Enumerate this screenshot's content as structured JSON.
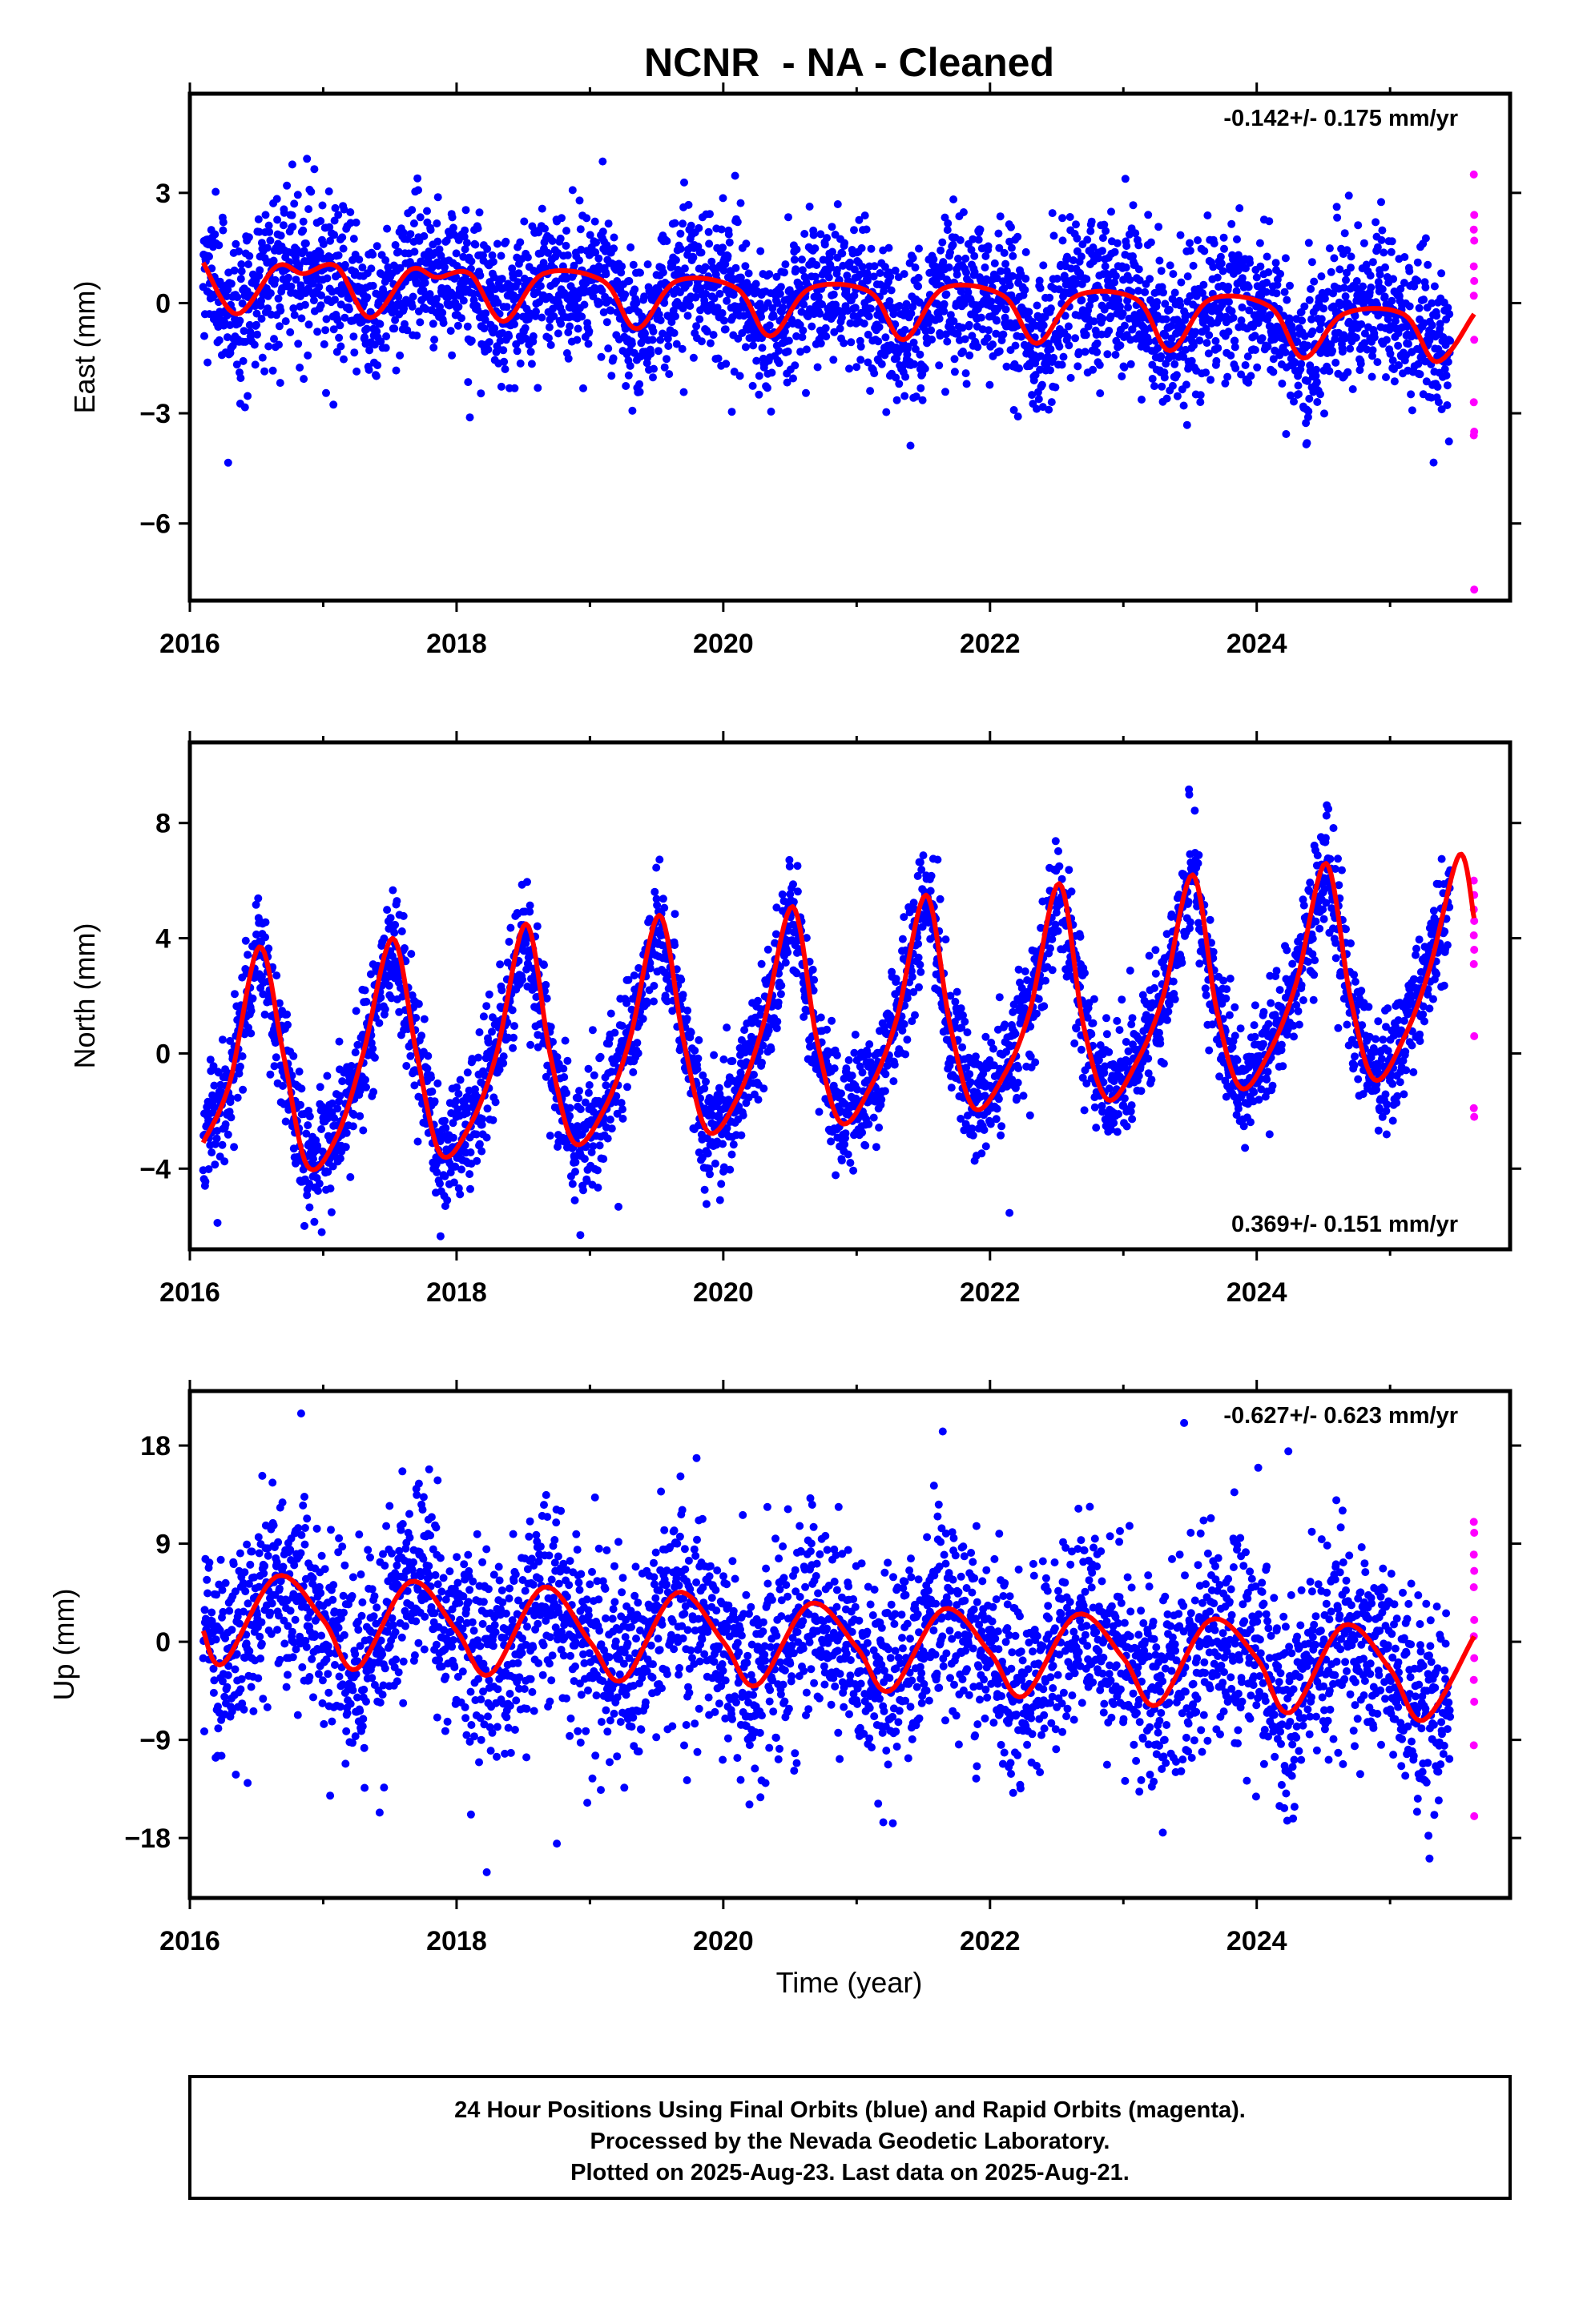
{
  "title": "NCNR  - NA - Cleaned",
  "x_axis_label": "Time (year)",
  "footnote": [
    "24 Hour Positions Using Final Orbits (blue) and Rapid Orbits (magenta).",
    "Processed by the Nevada Geodetic Laboratory.",
    "Plotted on 2025-Aug-23. Last data on 2025-Aug-21."
  ],
  "colors": {
    "final": "#0000ff",
    "rapid": "#ff00ff",
    "model": "#ff0000",
    "frame": "#000000"
  },
  "chart_data": [
    {
      "type": "scatter",
      "component": "east",
      "ylabel": "East (mm)",
      "rate_text": "-0.142+/- 0.175 mm/yr",
      "rate_position": "top-right",
      "xlim": [
        2016.0,
        2025.9
      ],
      "ylim": [
        -8.1,
        5.7
      ],
      "x_ticks": [
        2016,
        2018,
        2020,
        2022,
        2024
      ],
      "y_ticks": [
        -6,
        -3,
        0,
        3
      ],
      "y_tick_labels": [
        "−6",
        "−3",
        "0",
        "3"
      ],
      "grid": false,
      "rate_mm_per_yr": -0.142,
      "annual_amplitude_mm": 0.35,
      "annual_peak_phase": 0.62,
      "semiannual_amplitude_mm": 0.45,
      "semiannual_peak_phase": 0.08,
      "scatter_sd_mm": 1.0,
      "final_orbits_range": [
        2016.1,
        2025.45
      ],
      "rapid_orbits_range": [
        2025.46,
        2025.63
      ],
      "rapid_orbits_values": [
        3.5,
        2.4,
        2.0,
        1.7,
        1.0,
        0.6,
        0.2,
        -1.0,
        -2.7,
        -3.5,
        -3.6,
        -7.8
      ],
      "model_key_points": [
        [
          2016.1,
          1.1
        ],
        [
          2016.35,
          -0.3
        ],
        [
          2016.65,
          1.0
        ],
        [
          2016.85,
          0.8
        ],
        [
          2017.1,
          1.0
        ],
        [
          2017.35,
          -0.4
        ],
        [
          2017.65,
          0.9
        ],
        [
          2017.85,
          0.7
        ],
        [
          2018.1,
          0.8
        ],
        [
          2018.35,
          -0.5
        ],
        [
          2018.65,
          0.8
        ],
        [
          2019.1,
          0.6
        ],
        [
          2019.35,
          -0.7
        ],
        [
          2019.65,
          0.6
        ],
        [
          2020.1,
          0.4
        ],
        [
          2020.35,
          -0.9
        ],
        [
          2020.65,
          0.4
        ],
        [
          2021.1,
          0.3
        ],
        [
          2021.35,
          -1.0
        ],
        [
          2021.65,
          0.4
        ],
        [
          2022.1,
          0.2
        ],
        [
          2022.35,
          -1.1
        ],
        [
          2022.65,
          0.2
        ],
        [
          2023.1,
          0.1
        ],
        [
          2023.35,
          -1.3
        ],
        [
          2023.65,
          0.1
        ],
        [
          2024.1,
          -0.1
        ],
        [
          2024.35,
          -1.5
        ],
        [
          2024.65,
          -0.3
        ],
        [
          2025.1,
          -0.3
        ],
        [
          2025.35,
          -1.6
        ],
        [
          2025.63,
          -0.3
        ]
      ]
    },
    {
      "type": "scatter",
      "component": "north",
      "ylabel": "North (mm)",
      "rate_text": "0.369+/- 0.151 mm/yr",
      "rate_position": "bottom-right",
      "xlim": [
        2016.0,
        2025.9
      ],
      "ylim": [
        -6.8,
        10.8
      ],
      "x_ticks": [
        2016,
        2018,
        2020,
        2022,
        2024
      ],
      "y_ticks": [
        -4,
        0,
        4,
        8
      ],
      "y_tick_labels": [
        "−4",
        "0",
        "4",
        "8"
      ],
      "grid": false,
      "rate_mm_per_yr": 0.369,
      "annual_amplitude_mm": 3.6,
      "annual_peak_phase": 0.53,
      "semiannual_amplitude_mm": 0.9,
      "semiannual_peak_phase": 0.03,
      "scatter_sd_mm": 1.0,
      "final_orbits_range": [
        2016.1,
        2025.45
      ],
      "rapid_orbits_range": [
        2025.46,
        2025.63
      ],
      "rapid_orbits_values": [
        6.0,
        5.5,
        5.0,
        4.6,
        4.1,
        3.6,
        3.1,
        0.6,
        -1.9,
        -2.2
      ],
      "model_key_points": [
        [
          2016.1,
          -3.1
        ],
        [
          2016.3,
          -1.0
        ],
        [
          2016.52,
          3.7
        ],
        [
          2016.7,
          0.0
        ],
        [
          2016.88,
          -3.9
        ],
        [
          2017.1,
          -2.9
        ],
        [
          2017.3,
          0.0
        ],
        [
          2017.52,
          4.0
        ],
        [
          2017.7,
          0.0
        ],
        [
          2017.88,
          -3.5
        ],
        [
          2018.1,
          -2.5
        ],
        [
          2018.3,
          0.0
        ],
        [
          2018.52,
          4.5
        ],
        [
          2018.7,
          0.0
        ],
        [
          2018.88,
          -3.1
        ],
        [
          2019.1,
          -2.0
        ],
        [
          2019.3,
          0.5
        ],
        [
          2019.52,
          4.8
        ],
        [
          2019.7,
          0.5
        ],
        [
          2019.88,
          -2.7
        ],
        [
          2020.1,
          -1.6
        ],
        [
          2020.3,
          1.0
        ],
        [
          2020.52,
          5.1
        ],
        [
          2020.7,
          0.5
        ],
        [
          2020.88,
          -2.4
        ],
        [
          2021.1,
          -1.2
        ],
        [
          2021.3,
          1.2
        ],
        [
          2021.52,
          5.5
        ],
        [
          2021.7,
          1.0
        ],
        [
          2021.88,
          -1.9
        ],
        [
          2022.1,
          -0.8
        ],
        [
          2022.3,
          1.5
        ],
        [
          2022.52,
          5.9
        ],
        [
          2022.7,
          1.0
        ],
        [
          2022.88,
          -1.6
        ],
        [
          2023.1,
          -0.3
        ],
        [
          2023.3,
          2.0
        ],
        [
          2023.52,
          6.2
        ],
        [
          2023.7,
          1.5
        ],
        [
          2023.88,
          -1.2
        ],
        [
          2024.1,
          0.1
        ],
        [
          2024.3,
          2.5
        ],
        [
          2024.52,
          6.6
        ],
        [
          2024.7,
          2.0
        ],
        [
          2024.88,
          -0.9
        ],
        [
          2025.1,
          0.5
        ],
        [
          2025.3,
          3.0
        ],
        [
          2025.52,
          6.9
        ],
        [
          2025.63,
          4.7
        ]
      ]
    },
    {
      "type": "scatter",
      "component": "up",
      "ylabel": "Up (mm)",
      "rate_text": "-0.627+/- 0.623 mm/yr",
      "rate_position": "top-right",
      "xlim": [
        2016.0,
        2025.9
      ],
      "ylim": [
        -23.5,
        23.0
      ],
      "x_ticks": [
        2016,
        2018,
        2020,
        2022,
        2024
      ],
      "y_ticks": [
        -18,
        -9,
        0,
        9,
        18
      ],
      "y_tick_labels": [
        "−18",
        "−9",
        "0",
        "9",
        "18"
      ],
      "grid": false,
      "rate_mm_per_yr": -0.627,
      "annual_amplitude_mm": 4.6,
      "annual_peak_phase": 0.63,
      "semiannual_amplitude_mm": 0.5,
      "semiannual_peak_phase": 0.13,
      "scatter_sd_mm": 4.6,
      "final_orbits_range": [
        2016.1,
        2025.45
      ],
      "rapid_orbits_range": [
        2025.46,
        2025.63
      ],
      "rapid_orbits_values": [
        11.0,
        10.0,
        8.0,
        6.5,
        5.0,
        2.0,
        0.5,
        -1.5,
        -3.5,
        -5.5,
        -9.5,
        -16.0
      ],
      "model_key_points": [
        [
          2016.1,
          1.0
        ],
        [
          2016.25,
          -2.0
        ],
        [
          2016.65,
          6.0
        ],
        [
          2017.0,
          2.0
        ],
        [
          2017.25,
          -2.5
        ],
        [
          2017.65,
          5.5
        ],
        [
          2018.0,
          1.0
        ],
        [
          2018.25,
          -3.0
        ],
        [
          2018.65,
          5.0
        ],
        [
          2019.0,
          0.0
        ],
        [
          2019.25,
          -3.5
        ],
        [
          2019.65,
          4.5
        ],
        [
          2020.0,
          0.0
        ],
        [
          2020.25,
          -4.0
        ],
        [
          2020.65,
          3.5
        ],
        [
          2021.0,
          -0.5
        ],
        [
          2021.25,
          -4.5
        ],
        [
          2021.65,
          3.0
        ],
        [
          2022.0,
          -1.0
        ],
        [
          2022.25,
          -5.0
        ],
        [
          2022.65,
          2.5
        ],
        [
          2023.0,
          -1.5
        ],
        [
          2023.25,
          -5.8
        ],
        [
          2023.65,
          2.0
        ],
        [
          2024.0,
          -1.5
        ],
        [
          2024.25,
          -6.5
        ],
        [
          2024.65,
          1.5
        ],
        [
          2025.0,
          -2.5
        ],
        [
          2025.25,
          -7.2
        ],
        [
          2025.63,
          0.5
        ]
      ]
    }
  ]
}
